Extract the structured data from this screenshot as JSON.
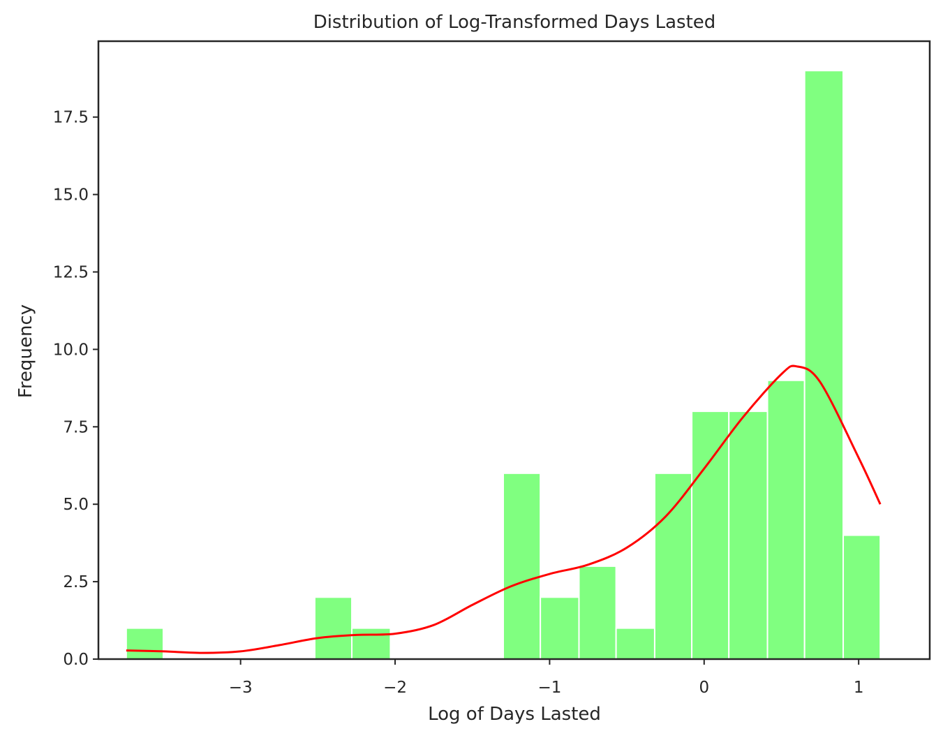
{
  "chart_data": {
    "type": "bar",
    "title": "Distribution of Log-Transformed Days Lasted",
    "xlabel": "Log of Days Lasted",
    "ylabel": "Frequency",
    "xlim": [
      -3.92,
      1.46
    ],
    "ylim": [
      0,
      19.95
    ],
    "x_ticks": [
      {
        "value": -3,
        "label": "−3"
      },
      {
        "value": -2,
        "label": "−2"
      },
      {
        "value": -1,
        "label": "−1"
      },
      {
        "value": 0,
        "label": "0"
      },
      {
        "value": 1,
        "label": "1"
      }
    ],
    "y_ticks": [
      {
        "value": 0,
        "label": "0.0"
      },
      {
        "value": 2.5,
        "label": "2.5"
      },
      {
        "value": 5,
        "label": "5.0"
      },
      {
        "value": 7.5,
        "label": "7.5"
      },
      {
        "value": 10,
        "label": "10.0"
      },
      {
        "value": 12.5,
        "label": "12.5"
      },
      {
        "value": 15,
        "label": "15.0"
      },
      {
        "value": 17.5,
        "label": "17.5"
      }
    ],
    "bins": [
      {
        "x0": -3.74,
        "x1": -3.5,
        "count": 1
      },
      {
        "x0": -3.5,
        "x1": -3.25,
        "count": 0
      },
      {
        "x0": -3.25,
        "x1": -3.01,
        "count": 0
      },
      {
        "x0": -3.01,
        "x1": -2.76,
        "count": 0
      },
      {
        "x0": -2.76,
        "x1": -2.52,
        "count": 0
      },
      {
        "x0": -2.52,
        "x1": -2.28,
        "count": 2
      },
      {
        "x0": -2.28,
        "x1": -2.03,
        "count": 1
      },
      {
        "x0": -2.03,
        "x1": -1.79,
        "count": 0
      },
      {
        "x0": -1.79,
        "x1": -1.54,
        "count": 0
      },
      {
        "x0": -1.54,
        "x1": -1.3,
        "count": 0
      },
      {
        "x0": -1.3,
        "x1": -1.06,
        "count": 6
      },
      {
        "x0": -1.06,
        "x1": -0.81,
        "count": 2
      },
      {
        "x0": -0.81,
        "x1": -0.57,
        "count": 3
      },
      {
        "x0": -0.57,
        "x1": -0.32,
        "count": 1
      },
      {
        "x0": -0.32,
        "x1": -0.08,
        "count": 6
      },
      {
        "x0": -0.08,
        "x1": 0.16,
        "count": 8
      },
      {
        "x0": 0.16,
        "x1": 0.41,
        "count": 8
      },
      {
        "x0": 0.41,
        "x1": 0.65,
        "count": 9
      },
      {
        "x0": 0.65,
        "x1": 0.9,
        "count": 19
      },
      {
        "x0": 0.9,
        "x1": 1.14,
        "count": 4
      }
    ],
    "kde": {
      "x": [
        -3.74,
        -3.5,
        -3.25,
        -3.0,
        -2.75,
        -2.5,
        -2.25,
        -2.0,
        -1.75,
        -1.5,
        -1.25,
        -1.0,
        -0.75,
        -0.5,
        -0.25,
        0.0,
        0.25,
        0.5,
        0.6,
        0.75,
        1.0,
        1.14
      ],
      "y": [
        0.28,
        0.25,
        0.2,
        0.25,
        0.45,
        0.68,
        0.78,
        0.82,
        1.1,
        1.75,
        2.35,
        2.75,
        3.05,
        3.6,
        4.6,
        6.15,
        7.8,
        9.2,
        9.45,
        8.95,
        6.5,
        5.0
      ]
    },
    "colors": {
      "bar": "#80ff80",
      "bar_edge": "#ffffff",
      "kde": "#ff0000",
      "frame": "#262626",
      "text": "#262626"
    },
    "grid": false,
    "legend": "none"
  }
}
